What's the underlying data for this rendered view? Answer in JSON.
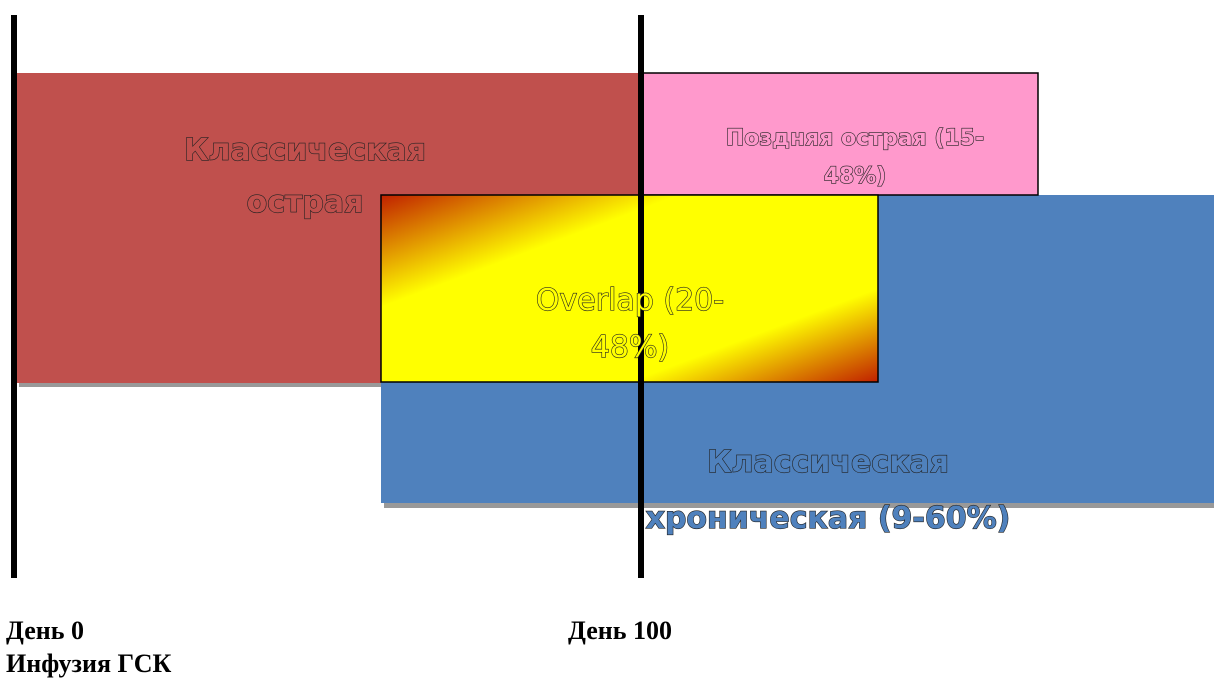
{
  "boxes": {
    "classic_acute": [
      "Классическая",
      "острая"
    ],
    "late_acute": [
      "Поздняя острая (15-",
      "48%)"
    ],
    "overlap": [
      "Overlap (20-",
      "48%)"
    ],
    "classic_chronic": [
      "Классическая",
      "хроническая (9-60%)"
    ]
  },
  "timeline": {
    "day0": [
      "День 0",
      "Инфузия ГСК"
    ],
    "day100": "День 100"
  }
}
